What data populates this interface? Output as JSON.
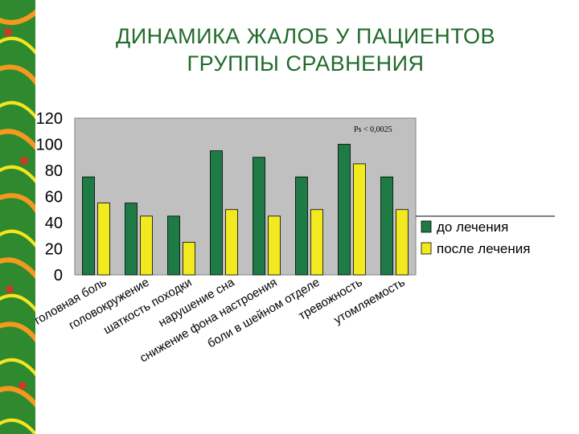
{
  "slide": {
    "title_line1": "ДИНАМИКА ЖАЛОБ У ПАЦИЕНТОВ",
    "title_line2": "ГРУППЫ СРАВНЕНИЯ"
  },
  "colors": {
    "plot_bg": "#c0c0c0",
    "series_before": "#1e7b46",
    "series_after": "#f2ea1e",
    "title": "#1f6b2a",
    "deco_green": "#2f8a2f",
    "deco_orange": "#f39a1e",
    "deco_yellow": "#f6e51e"
  },
  "chart_data": {
    "type": "bar",
    "title": "",
    "annotation": "Ps < 0,0025",
    "categories": [
      "головная боль",
      "головокружение",
      "шаткость походки",
      "нарушение сна",
      "снижение фона настроения",
      "боли в шейном отделе",
      "тревожность",
      "утомляемость"
    ],
    "series": [
      {
        "name": "до лечения",
        "values": [
          75,
          55,
          45,
          95,
          90,
          75,
          100,
          75
        ]
      },
      {
        "name": "после лечения",
        "values": [
          55,
          45,
          25,
          50,
          45,
          50,
          85,
          50
        ]
      }
    ],
    "yticks": [
      "0",
      "20",
      "40",
      "60",
      "80",
      "100",
      "120"
    ],
    "ylim": [
      0,
      120
    ],
    "grid": false,
    "legend": "right"
  }
}
